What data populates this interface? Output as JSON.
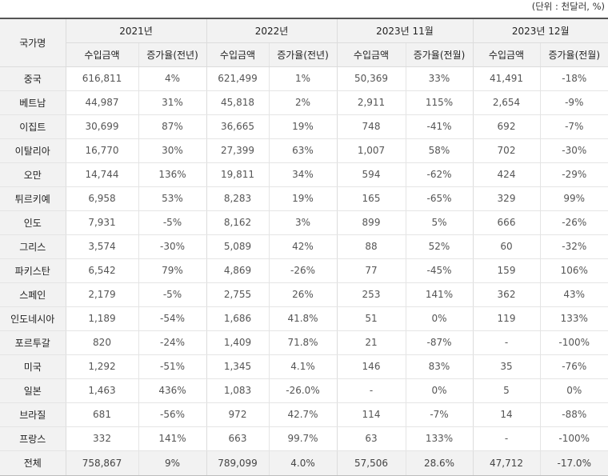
{
  "unit_note": "(단위 : 천달러, %)",
  "header": {
    "country": "국가명",
    "groups": [
      "2021년",
      "2022년",
      "2023년 11월",
      "2023년 12월"
    ],
    "subheaders": [
      "수입금액",
      "증가율(전년)",
      "수입금액",
      "증가율(전년)",
      "수입금액",
      "증가율(전월)",
      "수입금액",
      "증가율(전월)"
    ]
  },
  "rows": [
    {
      "country": "중국",
      "values": [
        "616,811",
        "4%",
        "621,499",
        "1%",
        "50,369",
        "33%",
        "41,491",
        "-18%"
      ]
    },
    {
      "country": "베트남",
      "values": [
        "44,987",
        "31%",
        "45,818",
        "2%",
        "2,911",
        "115%",
        "2,654",
        "-9%"
      ]
    },
    {
      "country": "이집트",
      "values": [
        "30,699",
        "87%",
        "36,665",
        "19%",
        "748",
        "-41%",
        "692",
        "-7%"
      ]
    },
    {
      "country": "이탈리아",
      "values": [
        "16,770",
        "30%",
        "27,399",
        "63%",
        "1,007",
        "58%",
        "702",
        "-30%"
      ]
    },
    {
      "country": "오만",
      "values": [
        "14,744",
        "136%",
        "19,811",
        "34%",
        "594",
        "-62%",
        "424",
        "-29%"
      ]
    },
    {
      "country": "튀르키예",
      "values": [
        "6,958",
        "53%",
        "8,283",
        "19%",
        "165",
        "-65%",
        "329",
        "99%"
      ]
    },
    {
      "country": "인도",
      "values": [
        "7,931",
        "-5%",
        "8,162",
        "3%",
        "899",
        "5%",
        "666",
        "-26%"
      ]
    },
    {
      "country": "그리스",
      "values": [
        "3,574",
        "-30%",
        "5,089",
        "42%",
        "88",
        "52%",
        "60",
        "-32%"
      ]
    },
    {
      "country": "파키스탄",
      "values": [
        "6,542",
        "79%",
        "4,869",
        "-26%",
        "77",
        "-45%",
        "159",
        "106%"
      ]
    },
    {
      "country": "스페인",
      "values": [
        "2,179",
        "-5%",
        "2,755",
        "26%",
        "253",
        "141%",
        "362",
        "43%"
      ]
    },
    {
      "country": "인도네시아",
      "values": [
        "1,189",
        "-54%",
        "1,686",
        "41.8%",
        "51",
        "0%",
        "119",
        "133%"
      ]
    },
    {
      "country": "포르투갈",
      "values": [
        "820",
        "-24%",
        "1,409",
        "71.8%",
        "21",
        "-87%",
        "-",
        "-100%"
      ]
    },
    {
      "country": "미국",
      "values": [
        "1,292",
        "-51%",
        "1,345",
        "4.1%",
        "146",
        "83%",
        "35",
        "-76%"
      ]
    },
    {
      "country": "일본",
      "values": [
        "1,463",
        "436%",
        "1,083",
        "-26.0%",
        "-",
        "0%",
        "5",
        "0%"
      ]
    },
    {
      "country": "브라질",
      "values": [
        "681",
        "-56%",
        "972",
        "42.7%",
        "114",
        "-7%",
        "14",
        "-88%"
      ]
    },
    {
      "country": "프랑스",
      "values": [
        "332",
        "141%",
        "663",
        "99.7%",
        "63",
        "133%",
        "-",
        "-100%"
      ]
    }
  ],
  "total": {
    "country": "전체",
    "values": [
      "758,867",
      "9%",
      "789,099",
      "4.0%",
      "57,506",
      "28.6%",
      "47,712",
      "-17.0%"
    ]
  }
}
